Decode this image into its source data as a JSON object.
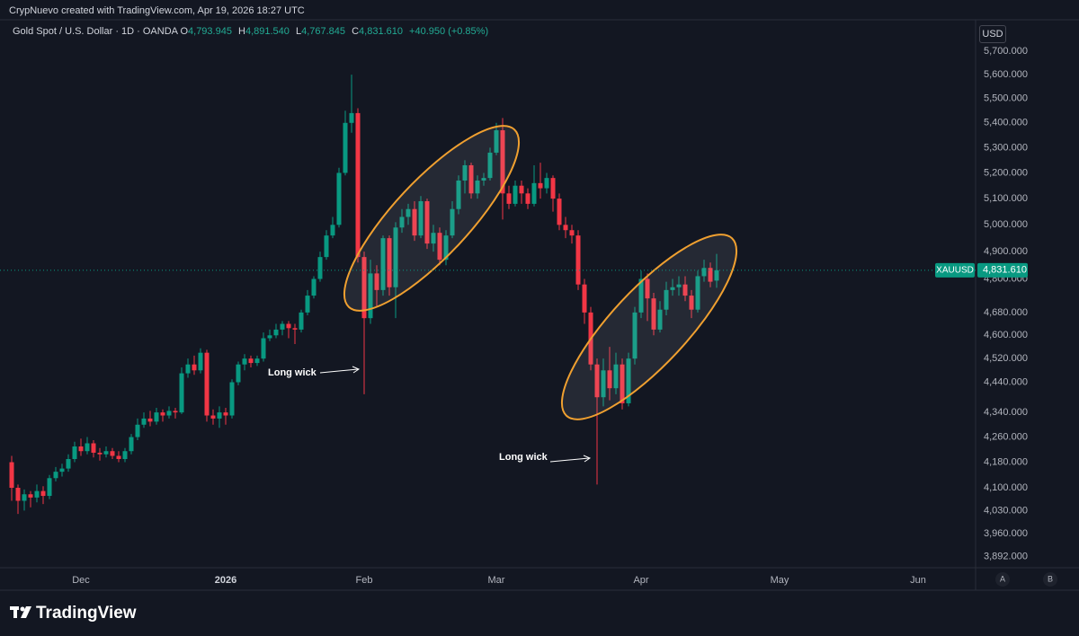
{
  "header": {
    "credit": "CrypNuevo created with TradingView.com, Apr 19, 2026 18:27 UTC",
    "symbol_title": "Gold Spot / U.S. Dollar · 1D · OANDA",
    "ohlc": [
      {
        "key": "O",
        "value": "4,793.945"
      },
      {
        "key": "H",
        "value": "4,891.540"
      },
      {
        "key": "L",
        "value": "4,767.845"
      },
      {
        "key": "C",
        "value": "4,831.610"
      }
    ],
    "change": "+40.950 (+0.85%)",
    "currency": "USD"
  },
  "chart_data": {
    "type": "candlestick",
    "up_color": "#089981",
    "down_color": "#f23645",
    "log_scale": true,
    "grid": false,
    "categories": [
      null,
      null,
      null,
      null,
      null,
      null,
      null,
      null,
      null,
      null,
      null,
      "Dec",
      null,
      null,
      null,
      null,
      null,
      null,
      null,
      null,
      null,
      null,
      null,
      null,
      null,
      null,
      null,
      null,
      null,
      null,
      null,
      null,
      null,
      null,
      "2026",
      null,
      null,
      null,
      null,
      null,
      null,
      null,
      null,
      null,
      null,
      null,
      null,
      null,
      null,
      null,
      null,
      null,
      null,
      null,
      null,
      null,
      "Feb",
      null,
      null,
      null,
      null,
      null,
      null,
      null,
      null,
      null,
      null,
      null,
      null,
      null,
      null,
      null,
      null,
      null,
      null,
      null,
      null,
      "Mar",
      null,
      null,
      null,
      null,
      null,
      null,
      null,
      null,
      null,
      null,
      null,
      null,
      null,
      null,
      null,
      null,
      null,
      null,
      null,
      null,
      null,
      null,
      "Apr",
      null,
      null,
      null,
      null,
      null,
      null,
      null,
      null,
      null,
      null,
      null,
      null,
      null,
      null,
      null,
      null,
      null,
      null,
      null,
      null,
      null,
      "May",
      null,
      null,
      null,
      null,
      null,
      null,
      null,
      null,
      null,
      null,
      null,
      null,
      null,
      null,
      null,
      null,
      null,
      null,
      null,
      null,
      null,
      "Jun",
      null,
      null,
      null,
      null,
      null,
      null,
      null,
      null
    ],
    "open": [
      4180,
      4100,
      4060,
      4080,
      4070,
      4090,
      4075,
      4130,
      4150,
      4160,
      4190,
      4230,
      4215,
      4240,
      4210,
      4205,
      4215,
      4200,
      4190,
      4215,
      4260,
      4300,
      4320,
      4310,
      4340,
      4330,
      4345,
      4340,
      4470,
      4500,
      4480,
      4540,
      4330,
      4320,
      4340,
      4330,
      4440,
      4500,
      4520,
      4505,
      4520,
      4590,
      4600,
      4620,
      4640,
      4625,
      4620,
      4680,
      4740,
      4800,
      4880,
      4960,
      5000,
      5200,
      5400,
      5440,
      4880,
      4660,
      4820,
      4760,
      4950,
      4770,
      4990,
      5030,
      5060,
      4960,
      5090,
      4930,
      4970,
      4870,
      4960,
      5060,
      5170,
      5230,
      5120,
      5170,
      5180,
      5280,
      5370,
      5120,
      5080,
      5150,
      5120,
      5080,
      5160,
      5140,
      5180,
      5100,
      5000,
      4980,
      4960,
      4780,
      4680,
      4500,
      4390,
      4480,
      4420,
      4500,
      4370,
      4520,
      4680,
      4800,
      4730,
      4620,
      4690,
      4760,
      4770,
      4780,
      4740,
      4690,
      4810,
      4840,
      4793.945,
      null,
      null,
      null,
      null,
      null,
      null,
      null,
      null,
      null,
      null,
      null,
      null,
      null,
      null,
      null,
      null,
      null,
      null,
      null,
      null,
      null,
      null,
      null,
      null,
      null,
      null,
      null,
      null,
      null,
      null,
      null,
      null,
      null,
      null,
      null,
      null,
      null,
      null,
      null,
      null
    ],
    "high": [
      4200,
      4110,
      4095,
      4090,
      4110,
      4105,
      4140,
      4165,
      4175,
      4205,
      4245,
      4255,
      4260,
      4250,
      4225,
      4230,
      4225,
      4215,
      4225,
      4270,
      4320,
      4340,
      4345,
      4355,
      4350,
      4360,
      4355,
      4490,
      4520,
      4530,
      4555,
      4550,
      4350,
      4360,
      4355,
      4450,
      4510,
      4535,
      4530,
      4530,
      4610,
      4620,
      4640,
      4650,
      4650,
      4640,
      4690,
      4760,
      4810,
      4900,
      4980,
      5030,
      5220,
      5450,
      5600,
      5460,
      4900,
      4870,
      4850,
      4960,
      4960,
      5010,
      5060,
      5080,
      5090,
      5110,
      5100,
      5000,
      4990,
      4980,
      5090,
      5190,
      5250,
      5240,
      5190,
      5200,
      5300,
      5400,
      5420,
      5150,
      5170,
      5170,
      5140,
      5230,
      5240,
      5200,
      5190,
      5120,
      5030,
      5000,
      4980,
      4800,
      4700,
      4520,
      4520,
      4560,
      4540,
      4520,
      4540,
      4700,
      4830,
      4820,
      4750,
      4720,
      4790,
      4800,
      4810,
      4810,
      4760,
      4830,
      4870,
      4860,
      4891.54,
      null,
      null,
      null,
      null,
      null,
      null,
      null,
      null,
      null,
      null,
      null,
      null,
      null,
      null,
      null,
      null,
      null,
      null,
      null,
      null,
      null,
      null,
      null,
      null,
      null,
      null,
      null,
      null,
      null,
      null,
      null,
      null,
      null,
      null,
      null,
      null,
      null,
      null,
      null,
      null
    ],
    "low": [
      4060,
      4020,
      4030,
      4040,
      4055,
      4050,
      4065,
      4120,
      4135,
      4150,
      4180,
      4200,
      4205,
      4195,
      4185,
      4195,
      4190,
      4180,
      4180,
      4205,
      4250,
      4290,
      4295,
      4300,
      4310,
      4320,
      4320,
      4335,
      4455,
      4465,
      4470,
      4310,
      4300,
      4290,
      4300,
      4320,
      4430,
      4480,
      4490,
      4495,
      4510,
      4580,
      4590,
      4600,
      4590,
      4570,
      4610,
      4670,
      4730,
      4790,
      4870,
      4950,
      4990,
      5190,
      5360,
      4860,
      4400,
      4640,
      4700,
      4740,
      4740,
      4660,
      4970,
      5000,
      4940,
      4950,
      4910,
      4900,
      4850,
      4850,
      4950,
      5040,
      5120,
      5100,
      5100,
      5150,
      5170,
      5270,
      5020,
      5060,
      5070,
      5080,
      5060,
      5070,
      5100,
      5120,
      5050,
      4980,
      4950,
      4930,
      4760,
      4640,
      4480,
      4110,
      4360,
      4380,
      4400,
      4350,
      4360,
      4500,
      4660,
      4650,
      4600,
      4610,
      4670,
      4740,
      4740,
      4720,
      4660,
      4680,
      4790,
      4770,
      4767.845,
      null,
      null,
      null,
      null,
      null,
      null,
      null,
      null,
      null,
      null,
      null,
      null,
      null,
      null,
      null,
      null,
      null,
      null,
      null,
      null,
      null,
      null,
      null,
      null,
      null,
      null,
      null,
      null,
      null,
      null,
      null,
      null,
      null,
      null,
      null,
      null,
      null,
      null,
      null,
      null
    ],
    "close": [
      4100,
      4060,
      4080,
      4070,
      4090,
      4075,
      4130,
      4150,
      4160,
      4190,
      4230,
      4215,
      4240,
      4210,
      4205,
      4215,
      4200,
      4190,
      4215,
      4260,
      4300,
      4320,
      4310,
      4340,
      4330,
      4345,
      4340,
      4470,
      4500,
      4480,
      4540,
      4330,
      4320,
      4340,
      4330,
      4440,
      4500,
      4520,
      4505,
      4520,
      4590,
      4600,
      4620,
      4640,
      4625,
      4620,
      4680,
      4740,
      4800,
      4880,
      4960,
      5000,
      5200,
      5400,
      5440,
      4880,
      4660,
      4820,
      4760,
      4950,
      4770,
      4990,
      5030,
      5060,
      4960,
      5090,
      4930,
      4970,
      4870,
      4960,
      5060,
      5170,
      5230,
      5120,
      5170,
      5180,
      5280,
      5370,
      5120,
      5080,
      5150,
      5120,
      5080,
      5160,
      5140,
      5180,
      5100,
      5000,
      4980,
      4960,
      4780,
      4680,
      4500,
      4390,
      4480,
      4420,
      4500,
      4370,
      4520,
      4680,
      4800,
      4730,
      4620,
      4690,
      4760,
      4770,
      4780,
      4740,
      4690,
      4810,
      4840,
      4790,
      4831.61,
      null,
      null,
      null,
      null,
      null,
      null,
      null,
      null,
      null,
      null,
      null,
      null,
      null,
      null,
      null,
      null,
      null,
      null,
      null,
      null,
      null,
      null,
      null,
      null,
      null,
      null,
      null,
      null,
      null,
      null,
      null,
      null,
      null,
      null,
      null,
      null,
      null,
      null,
      null,
      null
    ],
    "ylim": [
      3860,
      5837
    ],
    "yticks": [
      {
        "value": 3892,
        "label": "3,892.000"
      },
      {
        "value": 3960,
        "label": "3,960.000"
      },
      {
        "value": 4030,
        "label": "4,030.000"
      },
      {
        "value": 4100,
        "label": "4,100.000"
      },
      {
        "value": 4180,
        "label": "4,180.000"
      },
      {
        "value": 4260,
        "label": "4,260.000"
      },
      {
        "value": 4340,
        "label": "4,340.000"
      },
      {
        "value": 4440,
        "label": "4,440.000"
      },
      {
        "value": 4520,
        "label": "4,520.000"
      },
      {
        "value": 4600,
        "label": "4,600.000"
      },
      {
        "value": 4680,
        "label": "4,680.000"
      },
      {
        "value": 4800,
        "label": "4,800.000"
      },
      {
        "value": 4900,
        "label": "4,900.000"
      },
      {
        "value": 5000,
        "label": "5,000.000"
      },
      {
        "value": 5100,
        "label": "5,100.000"
      },
      {
        "value": 5200,
        "label": "5,200.000"
      },
      {
        "value": 5300,
        "label": "5,300.000"
      },
      {
        "value": 5400,
        "label": "5,400.000"
      },
      {
        "value": 5500,
        "label": "5,500.000"
      },
      {
        "value": 5600,
        "label": "5,600.000"
      },
      {
        "value": 5700,
        "label": "5,700.000"
      }
    ],
    "symbol": "XAUUSD",
    "last_price": {
      "value": 4831.61,
      "label": "4,831.610"
    },
    "annotations": [
      "Long wick",
      "Long wick"
    ],
    "scale_buttons": [
      "A",
      "B"
    ]
  },
  "footer": {
    "brand": "TradingView"
  }
}
